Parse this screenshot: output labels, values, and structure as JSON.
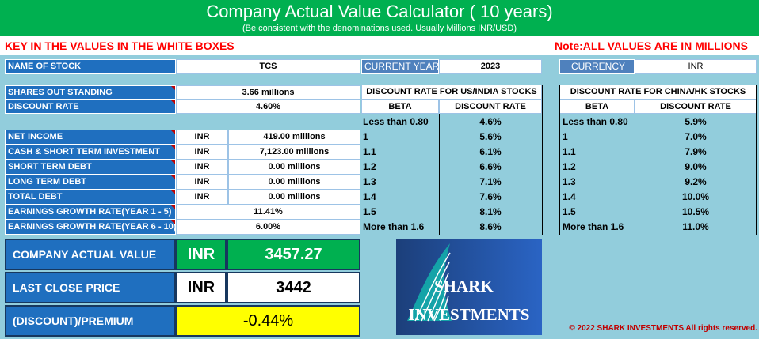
{
  "header": {
    "title": "Company Actual Value  Calculator ( 10 years)",
    "subtitle": "(Be consistent with the denominations used. Usually Millions INR/USD)",
    "key_note": "KEY IN THE VALUES IN THE WHITE BOXES",
    "units_note": "Note:ALL VALUES ARE IN MILLIONS"
  },
  "stock": {
    "name_label": "NAME OF STOCK",
    "name_value": "TCS",
    "year_label": "CURRENT  YEAR",
    "year_value": "2023",
    "currency_label": "CURRENCY",
    "currency_value": "INR"
  },
  "inputs": {
    "shares_label": "SHARES OUT STANDING",
    "shares_value": "3.66  millions",
    "discount_label": "DISCOUNT RATE",
    "discount_value": "4.60%",
    "rows": [
      {
        "label": "NET INCOME",
        "currency": "INR",
        "value": "419.00   millions"
      },
      {
        "label": "CASH & SHORT TERM INVESTMENT",
        "currency": "INR",
        "value": "7,123.00   millions"
      },
      {
        "label": "SHORT TERM DEBT",
        "currency": "INR",
        "value": "0.00   millions"
      },
      {
        "label": "LONG TERM DEBT",
        "currency": "INR",
        "value": "0.00   millions"
      },
      {
        "label": "TOTAL DEBT",
        "currency": "INR",
        "value": "0.00   millions"
      }
    ],
    "growth1_label": "EARNINGS GROWTH RATE(YEAR 1 - 5)",
    "growth1_value": "11.41%",
    "growth2_label": "EARNINGS GROWTH RATE(YEAR 6 - 10)",
    "growth2_value": "6.00%"
  },
  "us_india_table": {
    "title": "DISCOUNT RATE FOR US/INDIA STOCKS",
    "col_beta": "BETA",
    "col_rate": "DISCOUNT RATE",
    "rows": [
      {
        "beta": "Less than 0.80",
        "rate": "4.6%"
      },
      {
        "beta": "1",
        "rate": "5.6%"
      },
      {
        "beta": "1.1",
        "rate": "6.1%"
      },
      {
        "beta": "1.2",
        "rate": "6.6%"
      },
      {
        "beta": "1.3",
        "rate": "7.1%"
      },
      {
        "beta": "1.4",
        "rate": "7.6%"
      },
      {
        "beta": "1.5",
        "rate": "8.1%"
      },
      {
        "beta": "More than 1.6",
        "rate": "8.6%"
      }
    ]
  },
  "china_hk_table": {
    "title": "DISCOUNT RATE FOR CHINA/HK STOCKS",
    "col_beta": "BETA",
    "col_rate": "DISCOUNT RATE",
    "rows": [
      {
        "beta": "Less than 0.80",
        "rate": "5.9%"
      },
      {
        "beta": "1",
        "rate": "7.0%"
      },
      {
        "beta": "1.1",
        "rate": "7.9%"
      },
      {
        "beta": "1.2",
        "rate": "9.0%"
      },
      {
        "beta": "1.3",
        "rate": "9.2%"
      },
      {
        "beta": "1.4",
        "rate": "10.0%"
      },
      {
        "beta": "1.5",
        "rate": "10.5%"
      },
      {
        "beta": "More than 1.6",
        "rate": "11.0%"
      }
    ]
  },
  "results": {
    "actual_label": "COMPANY ACTUAL VALUE",
    "actual_currency": "INR",
    "actual_value": "3457.27",
    "close_label": "LAST CLOSE PRICE",
    "close_currency": "INR",
    "close_value": "3442",
    "premium_label": "(DISCOUNT)/PREMIUM",
    "premium_value": "-0.44%"
  },
  "logo": {
    "line1": "SHARK",
    "line2": "INVESTMENTS"
  },
  "copyright": "© 2022 SHARK INVESTMENTS All rights reserved.",
  "colors": {
    "banner_green": "#00b050",
    "label_blue": "#1f6fbf",
    "background": "#92cddc",
    "highlight_yellow": "#ffff00",
    "note_red": "#ff0000"
  }
}
